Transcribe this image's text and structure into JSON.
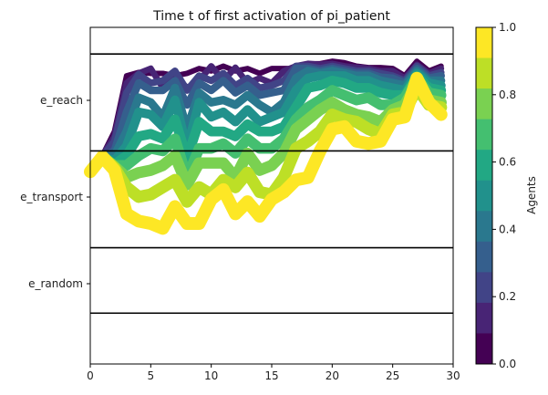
{
  "chart_data": {
    "type": "line",
    "title": "Time t of first activation of pi_patient",
    "xlabel": "",
    "ylabel": "",
    "xlim": [
      0,
      30
    ],
    "x_ticks": [
      0,
      5,
      10,
      15,
      20,
      25,
      30
    ],
    "y_categories": [
      "e_reach",
      "e_transport",
      "e_random"
    ],
    "y_bands": [
      {
        "label": "e_reach",
        "top": 0,
        "bottom": 2
      },
      {
        "label": "e_transport",
        "top": 2,
        "bottom": 4
      },
      {
        "label": "e_random",
        "top": 4,
        "bottom": 5.35
      }
    ],
    "ylim": [
      -0.55,
      6.4
    ],
    "band_boundaries": [
      0,
      2,
      4,
      5.35
    ],
    "colorbar": {
      "label": "Agents",
      "range": [
        0,
        1
      ],
      "ticks": [
        "0.0",
        "0.2",
        "0.4",
        "0.6",
        "0.8",
        "1.0"
      ],
      "colors": [
        "#440154",
        "#482475",
        "#414487",
        "#355f8d",
        "#2a788e",
        "#21918c",
        "#22a884",
        "#44bf70",
        "#7ad151",
        "#bddf26",
        "#fde725"
      ]
    },
    "x": [
      0,
      1,
      2,
      3,
      4,
      5,
      6,
      7,
      8,
      9,
      10,
      11,
      12,
      13,
      14,
      15,
      16,
      17,
      18,
      19,
      20,
      21,
      22,
      23,
      24,
      25,
      26,
      27,
      28,
      29
    ],
    "series": [
      {
        "agent": 0.0,
        "values": [
          2.38,
          2.1,
          1.6,
          0.45,
          0.38,
          0.4,
          0.4,
          0.45,
          0.4,
          0.3,
          0.35,
          0.25,
          0.35,
          0.3,
          0.4,
          0.3,
          0.3,
          0.3,
          0.2,
          0.2,
          0.15,
          0.18,
          0.25,
          0.28,
          0.28,
          0.3,
          0.45,
          0.15,
          0.35,
          0.25
        ]
      },
      {
        "agent": 0.1,
        "values": [
          2.38,
          2.1,
          1.7,
          0.6,
          0.4,
          0.3,
          0.7,
          0.45,
          0.7,
          0.55,
          0.25,
          0.55,
          0.28,
          0.6,
          0.5,
          0.6,
          0.35,
          0.25,
          0.2,
          0.22,
          0.2,
          0.25,
          0.28,
          0.3,
          0.35,
          0.35,
          0.5,
          0.22,
          0.4,
          0.3
        ]
      },
      {
        "agent": 0.2,
        "values": [
          2.4,
          2.12,
          1.8,
          0.8,
          0.42,
          0.6,
          0.55,
          0.35,
          0.75,
          0.45,
          0.55,
          0.4,
          0.65,
          0.5,
          0.7,
          0.65,
          0.55,
          0.25,
          0.25,
          0.3,
          0.25,
          0.3,
          0.35,
          0.35,
          0.4,
          0.45,
          0.55,
          0.25,
          0.45,
          0.38
        ]
      },
      {
        "agent": 0.3,
        "values": [
          2.42,
          2.12,
          2.0,
          1.2,
          0.6,
          0.75,
          0.75,
          0.55,
          1.05,
          0.6,
          0.75,
          0.55,
          0.8,
          0.65,
          0.85,
          0.8,
          0.75,
          0.3,
          0.3,
          0.35,
          0.3,
          0.35,
          0.4,
          0.4,
          0.48,
          0.5,
          0.6,
          0.3,
          0.5,
          0.45
        ]
      },
      {
        "agent": 0.4,
        "values": [
          2.42,
          2.12,
          2.1,
          1.6,
          0.9,
          1.0,
          1.3,
          0.7,
          1.55,
          0.8,
          1.0,
          0.95,
          1.05,
          0.85,
          1.05,
          1.2,
          1.0,
          0.5,
          0.35,
          0.4,
          0.35,
          0.4,
          0.45,
          0.45,
          0.55,
          0.6,
          0.65,
          0.35,
          0.55,
          0.55
        ]
      },
      {
        "agent": 0.5,
        "values": [
          2.43,
          2.12,
          2.2,
          1.9,
          1.2,
          1.25,
          1.5,
          0.95,
          1.95,
          1.0,
          1.3,
          1.2,
          1.4,
          1.15,
          1.4,
          1.3,
          1.2,
          0.75,
          0.5,
          0.45,
          0.45,
          0.45,
          0.55,
          0.55,
          0.65,
          0.7,
          0.75,
          0.4,
          0.6,
          0.65
        ]
      },
      {
        "agent": 0.6,
        "values": [
          2.43,
          2.12,
          2.28,
          2.1,
          1.7,
          1.65,
          1.75,
          1.35,
          2.15,
          1.4,
          1.6,
          1.6,
          1.7,
          1.45,
          1.6,
          1.6,
          1.5,
          1.1,
          0.7,
          0.65,
          0.55,
          0.6,
          0.7,
          0.7,
          0.8,
          0.85,
          0.85,
          0.45,
          0.7,
          0.75
        ]
      },
      {
        "agent": 0.7,
        "values": [
          2.43,
          2.12,
          2.3,
          2.3,
          2.1,
          1.95,
          2.0,
          1.75,
          2.55,
          1.95,
          1.95,
          1.85,
          2.05,
          1.75,
          1.95,
          1.95,
          1.75,
          1.35,
          1.1,
          0.95,
          0.75,
          0.85,
          0.95,
          0.9,
          1.05,
          1.05,
          0.9,
          0.5,
          0.8,
          0.85
        ]
      },
      {
        "agent": 0.8,
        "values": [
          2.43,
          2.12,
          2.32,
          2.55,
          2.45,
          2.4,
          2.3,
          2.1,
          2.7,
          2.25,
          2.25,
          2.25,
          2.55,
          2.05,
          2.4,
          2.3,
          2.05,
          1.55,
          1.35,
          1.15,
          1.0,
          1.15,
          1.25,
          1.3,
          1.4,
          1.15,
          1.05,
          0.6,
          0.95,
          1.0
        ]
      },
      {
        "agent": 0.9,
        "values": [
          2.43,
          2.12,
          2.35,
          2.75,
          2.95,
          2.9,
          2.75,
          2.6,
          3.05,
          2.75,
          2.9,
          2.6,
          2.75,
          2.45,
          2.85,
          2.9,
          2.55,
          1.95,
          1.8,
          1.6,
          1.25,
          1.35,
          1.4,
          1.55,
          1.65,
          1.25,
          1.2,
          0.7,
          1.05,
          1.1
        ]
      },
      {
        "agent": 1.0,
        "values": [
          2.43,
          2.12,
          2.4,
          3.3,
          3.45,
          3.5,
          3.6,
          3.15,
          3.5,
          3.5,
          3.0,
          2.8,
          3.3,
          3.05,
          3.35,
          3.0,
          2.85,
          2.6,
          2.55,
          2.0,
          1.55,
          1.5,
          1.8,
          1.85,
          1.8,
          1.35,
          1.3,
          0.5,
          1.0,
          1.25
        ]
      }
    ]
  }
}
